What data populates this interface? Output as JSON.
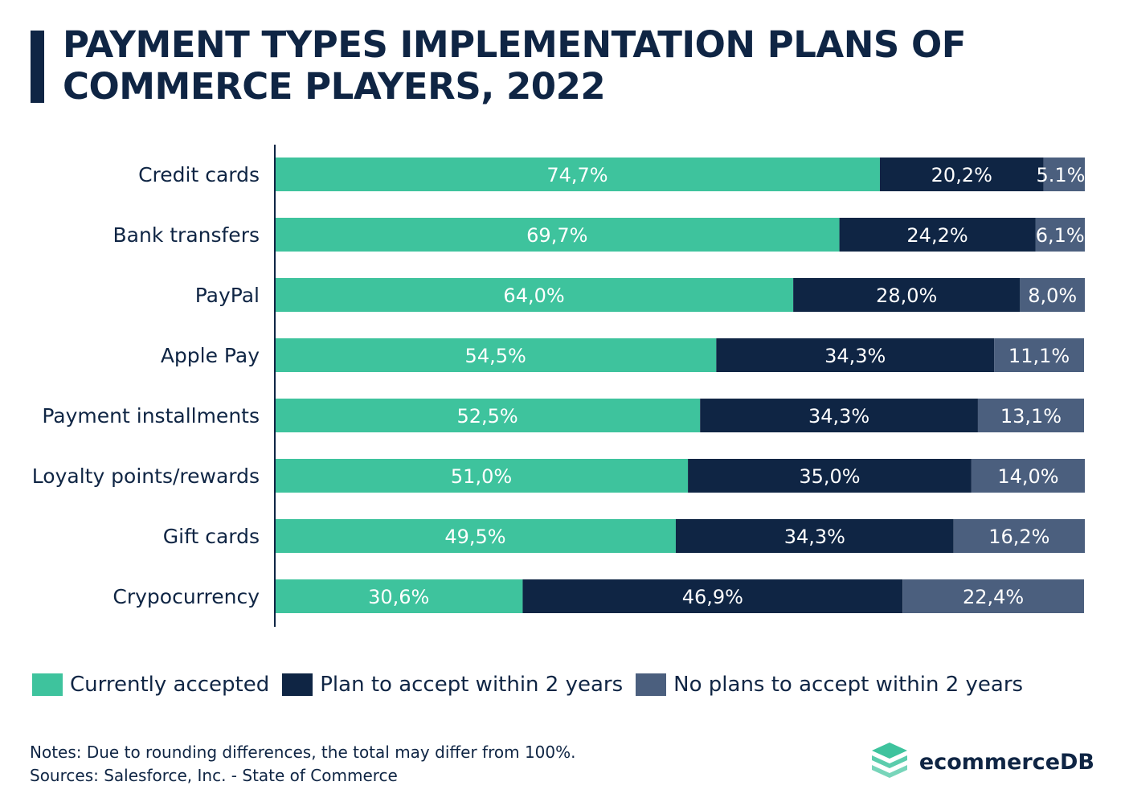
{
  "title": "PAYMENT TYPES IMPLEMENTATION PLANS OF COMMERCE PLAYERS, 2022",
  "colors": {
    "currently": "#3ec39d",
    "plan": "#0f2544",
    "no_plans": "#4b5f7e",
    "text": "#0f2544"
  },
  "chart_data": {
    "type": "bar",
    "orientation": "horizontal",
    "stacked": true,
    "categories": [
      "Credit cards",
      "Bank transfers",
      "PayPal",
      "Apple Pay",
      "Payment installments",
      "Loyalty points/rewards",
      "Gift cards",
      "Crypocurrency"
    ],
    "series": [
      {
        "name": "Currently accepted",
        "values": [
          74.7,
          69.7,
          64.0,
          54.5,
          52.5,
          51.0,
          49.5,
          30.6
        ],
        "labels": [
          "74,7%",
          "69,7%",
          "64,0%",
          "54,5%",
          "52,5%",
          "51,0%",
          "49,5%",
          "30,6%"
        ]
      },
      {
        "name": "Plan to accept within 2 years",
        "values": [
          20.2,
          24.2,
          28.0,
          34.3,
          34.3,
          35.0,
          34.3,
          46.9
        ],
        "labels": [
          "20,2%",
          "24,2%",
          "28,0%",
          "34,3%",
          "34,3%",
          "35,0%",
          "34,3%",
          "46,9%"
        ]
      },
      {
        "name": "No plans to accept within 2 years",
        "values": [
          5.1,
          6.1,
          8.0,
          11.1,
          13.1,
          14.0,
          16.2,
          22.4
        ],
        "labels": [
          "5.1%",
          "6,1%",
          "8,0%",
          "11,1%",
          "13,1%",
          "14,0%",
          "16,2%",
          "22,4%"
        ]
      }
    ],
    "xlim": [
      0,
      100
    ],
    "legend": "bottom-left",
    "grid": false
  },
  "legend": {
    "items": [
      {
        "label": "Currently accepted",
        "color": "#3ec39d"
      },
      {
        "label": "Plan to accept within 2 years",
        "color": "#0f2544"
      },
      {
        "label": "No plans to accept within 2 years",
        "color": "#4b5f7e"
      }
    ]
  },
  "footer": {
    "notes": "Notes: Due to rounding differences, the total may differ from 100%.",
    "sources": "Sources:  Salesforce, Inc. - State of Commerce",
    "brand": "ecommerceDB"
  }
}
